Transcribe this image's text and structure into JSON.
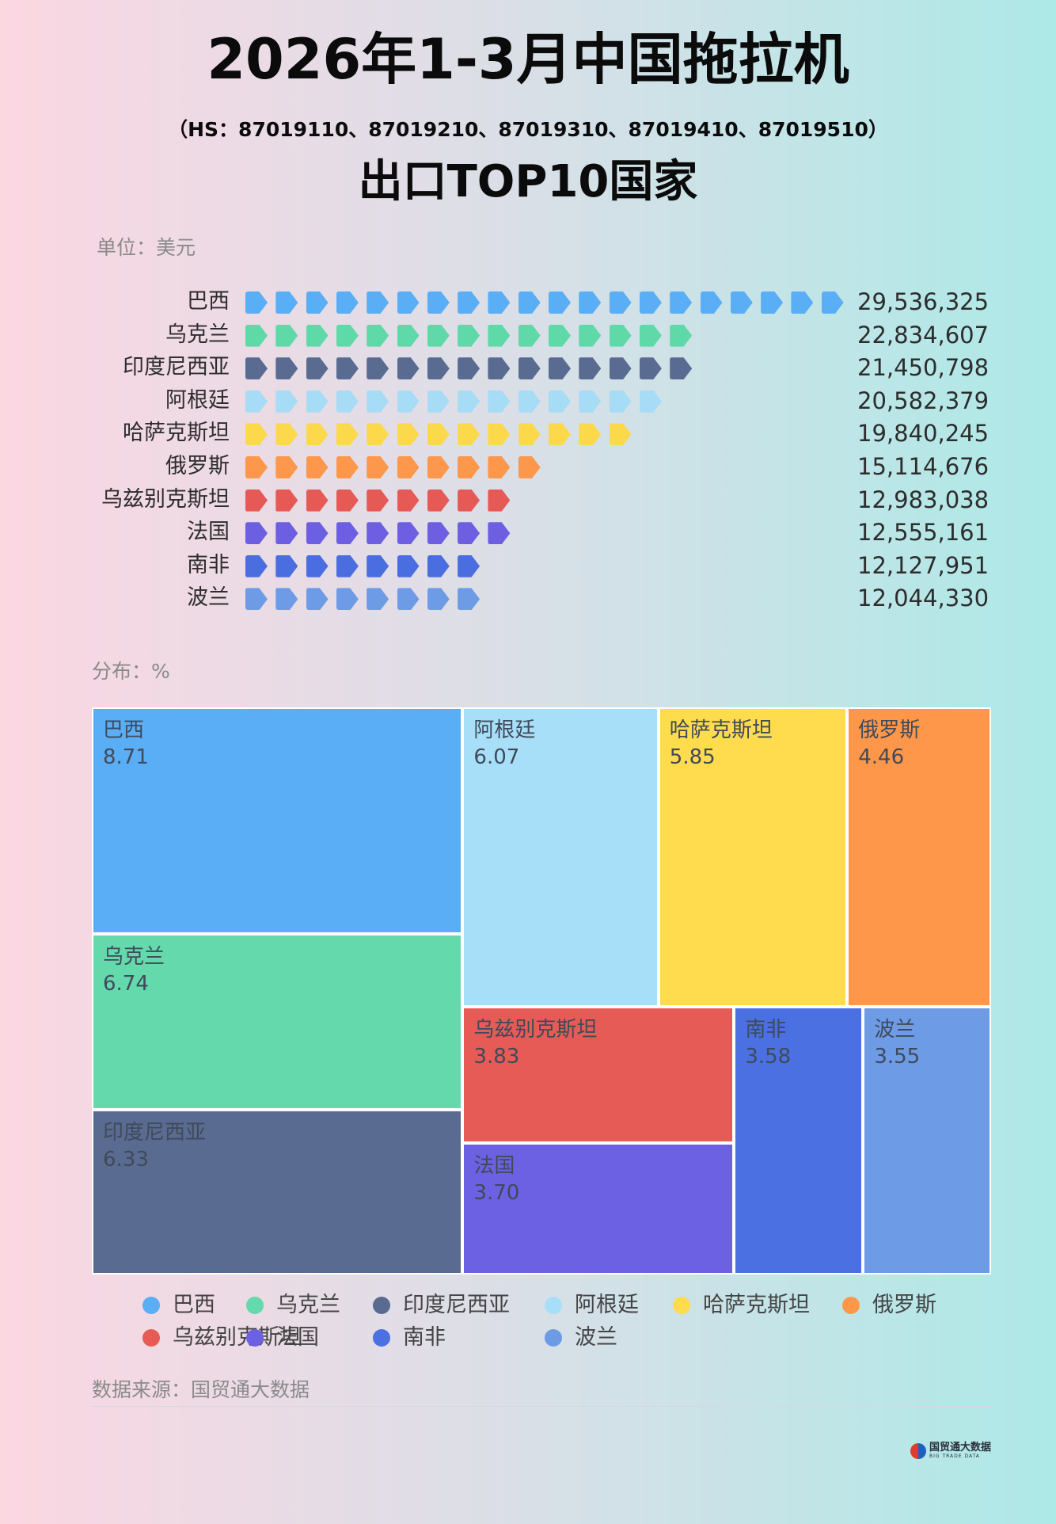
{
  "header": {
    "title_line1": "2026年1-3月中国拖拉机",
    "hs_codes": "（HS：87019110、87019210、87019310、87019410、87019510）",
    "title_line2": "出口TOP10国家"
  },
  "unit_label": "单位：美元",
  "distribution_label": "分布：%",
  "source_label": "数据来源：国贸通大数据",
  "logo": {
    "name": "国贸通大数据",
    "sub": "BIG TRADE DATA"
  },
  "chart_data": [
    {
      "type": "bar",
      "style": "pictogram",
      "categories": [
        "巴西",
        "乌克兰",
        "印度尼西亚",
        "阿根廷",
        "哈萨克斯坦",
        "俄罗斯",
        "乌兹别克斯坦",
        "法国",
        "南非",
        "波兰"
      ],
      "values": [
        29536325,
        22834607,
        21450798,
        20582379,
        19840245,
        15114676,
        12983038,
        12555161,
        12127951,
        12044330
      ],
      "value_labels": [
        "29,536,325",
        "22,834,607",
        "21,450,798",
        "20,582,379",
        "19,840,245",
        "15,114,676",
        "12,983,038",
        "12,555,161",
        "12,127,951",
        "12,044,330"
      ],
      "icon_counts": [
        20,
        15,
        15,
        14,
        13,
        10,
        9,
        9,
        8,
        8
      ],
      "icon_name": "arrow-icon",
      "colors": [
        "#5aaef5",
        "#5fd9a8",
        "#5a6b92",
        "#a7dcf6",
        "#fcd94b",
        "#fd974b",
        "#e65a56",
        "#6c5fe2",
        "#4a6ee0",
        "#6d9be6"
      ]
    },
    {
      "type": "treemap",
      "tiles": [
        {
          "name": "巴西",
          "value": 8.71,
          "color": "#5aaef5"
        },
        {
          "name": "乌克兰",
          "value": 6.74,
          "color": "#63d9ac"
        },
        {
          "name": "印度尼西亚",
          "value": 6.33,
          "color": "#5a6b92"
        },
        {
          "name": "阿根廷",
          "value": 6.07,
          "color": "#a8dff8"
        },
        {
          "name": "哈萨克斯坦",
          "value": 5.85,
          "color": "#ffdb4e"
        },
        {
          "name": "俄罗斯",
          "value": 4.46,
          "color": "#ff974b"
        },
        {
          "name": "乌兹别克斯坦",
          "value": 3.83,
          "color": "#e65b56"
        },
        {
          "name": "法国",
          "value": 3.7,
          "color": "#6c61e2"
        },
        {
          "name": "南非",
          "value": 3.58,
          "color": "#4a70e1"
        },
        {
          "name": "波兰",
          "value": 3.55,
          "color": "#6d9be6"
        }
      ]
    }
  ]
}
